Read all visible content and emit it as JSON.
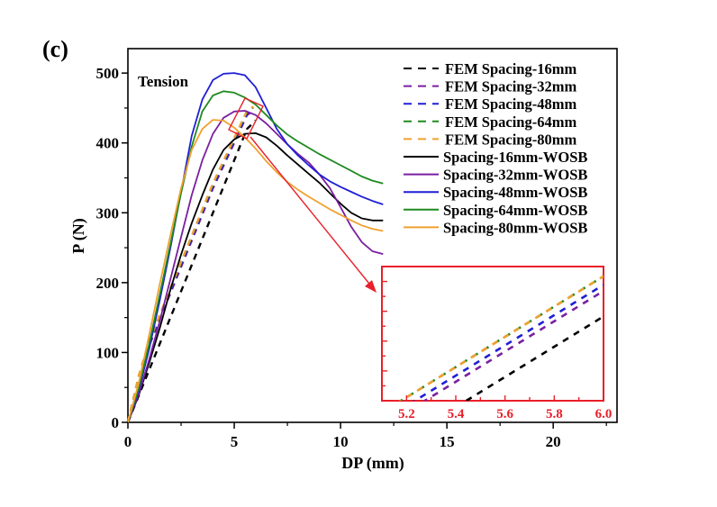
{
  "chart_data": {
    "type": "line",
    "panel_label": "(c)",
    "annotation": "Tension",
    "xlabel": "DP (mm)",
    "ylabel": "P (N)",
    "xlim": [
      0,
      23
    ],
    "ylim": [
      0,
      535
    ],
    "xticks": [
      0,
      5,
      10,
      15,
      20
    ],
    "yticks": [
      0,
      100,
      200,
      300,
      400,
      500
    ],
    "grid": false,
    "legend_position": "top-right",
    "series": [
      {
        "name": "FEM Spacing-16mm",
        "color": "#000000",
        "dash": true,
        "x": [
          0,
          1,
          2,
          3,
          4,
          5,
          5.6,
          6.0
        ],
        "y": [
          0,
          75,
          150,
          225,
          300,
          375,
          420,
          432
        ]
      },
      {
        "name": "FEM Spacing-32mm",
        "color": "#7a1fa0",
        "dash": true,
        "x": [
          0,
          0.5,
          1,
          2,
          3,
          4,
          5,
          5.6,
          5.9
        ],
        "y": [
          0,
          60,
          110,
          185,
          260,
          335,
          400,
          440,
          446
        ]
      },
      {
        "name": "FEM Spacing-48mm",
        "color": "#1f1fd6",
        "dash": true,
        "x": [
          0,
          0.5,
          1,
          2,
          3,
          4,
          5,
          5.6,
          5.9
        ],
        "y": [
          0,
          62,
          112,
          188,
          263,
          338,
          403,
          442,
          448
        ]
      },
      {
        "name": "FEM Spacing-64mm",
        "color": "#1f8a1f",
        "dash": true,
        "x": [
          0,
          0.5,
          1,
          2,
          3,
          4,
          5,
          5.6,
          5.9
        ],
        "y": [
          0,
          65,
          115,
          191,
          266,
          341,
          406,
          445,
          451
        ]
      },
      {
        "name": "FEM Spacing-80mm",
        "color": "#f0a030",
        "dash": true,
        "x": [
          0,
          0.5,
          1,
          2,
          3,
          4,
          5,
          5.6,
          5.9
        ],
        "y": [
          0,
          66,
          116,
          192,
          267,
          342,
          407,
          446,
          452
        ]
      },
      {
        "name": "Spacing-16mm-WOSB",
        "color": "#000000",
        "dash": false,
        "x": [
          0,
          0.5,
          1,
          1.5,
          2,
          2.5,
          3,
          3.5,
          4,
          4.5,
          5,
          5.5,
          6,
          6.5,
          7,
          7.5,
          8,
          8.5,
          9,
          9.5,
          10,
          10.5,
          11,
          11.5,
          12
        ],
        "y": [
          0,
          38,
          85,
          135,
          190,
          240,
          285,
          325,
          362,
          390,
          405,
          413,
          414,
          408,
          396,
          382,
          369,
          356,
          343,
          328,
          313,
          300,
          292,
          289,
          289
        ]
      },
      {
        "name": "Spacing-32mm-WOSB",
        "color": "#7a1fa0",
        "dash": false,
        "x": [
          0,
          0.5,
          1,
          1.5,
          2,
          2.5,
          3,
          3.5,
          4,
          4.5,
          5,
          5.5,
          6,
          6.5,
          7,
          7.5,
          8,
          8.5,
          9,
          9.5,
          10,
          10.5,
          11,
          11.5,
          12
        ],
        "y": [
          0,
          40,
          90,
          145,
          205,
          265,
          325,
          375,
          413,
          436,
          445,
          446,
          440,
          428,
          413,
          398,
          384,
          372,
          355,
          335,
          308,
          280,
          258,
          245,
          241
        ]
      },
      {
        "name": "Spacing-48mm-WOSB",
        "color": "#1f1fd6",
        "dash": false,
        "x": [
          0,
          0.5,
          1,
          1.5,
          2,
          2.5,
          3,
          3.5,
          4,
          4.5,
          5,
          5.5,
          6,
          6.5,
          7,
          7.5,
          8,
          8.5,
          9,
          9.5,
          10,
          10.5,
          11,
          11.5,
          12
        ],
        "y": [
          0,
          45,
          105,
          175,
          250,
          330,
          410,
          462,
          490,
          499,
          500,
          497,
          480,
          450,
          420,
          398,
          382,
          368,
          355,
          345,
          337,
          330,
          323,
          317,
          312
        ]
      },
      {
        "name": "Spacing-64mm-WOSB",
        "color": "#1f8a1f",
        "dash": false,
        "x": [
          0,
          0.5,
          1,
          1.5,
          2,
          2.5,
          3,
          3.5,
          4,
          4.5,
          5,
          5.5,
          6,
          6.5,
          7,
          7.5,
          8,
          8.5,
          9,
          9.5,
          10,
          10.5,
          11,
          11.5,
          12
        ],
        "y": [
          0,
          48,
          112,
          183,
          255,
          328,
          395,
          445,
          468,
          474,
          472,
          465,
          455,
          440,
          425,
          412,
          402,
          393,
          384,
          376,
          368,
          360,
          352,
          346,
          342
        ]
      },
      {
        "name": "Spacing-80mm-WOSB",
        "color": "#f0a030",
        "dash": false,
        "x": [
          0,
          0.5,
          1,
          1.5,
          2,
          2.5,
          3,
          3.5,
          4,
          4.5,
          5,
          5.5,
          6,
          6.5,
          7,
          7.5,
          8,
          8.5,
          9,
          9.5,
          10,
          10.5,
          11,
          11.5,
          12
        ],
        "y": [
          0,
          55,
          125,
          198,
          268,
          335,
          390,
          420,
          433,
          432,
          422,
          408,
          392,
          374,
          358,
          344,
          333,
          323,
          314,
          305,
          297,
          289,
          282,
          277,
          274
        ]
      }
    ],
    "inset": {
      "xlim": [
        5.1,
        6.0
      ],
      "xticks": [
        "5.2",
        "5.4",
        "5.6",
        "5.8",
        "6.0"
      ],
      "ylim": [
        400,
        455
      ],
      "zoom_region": {
        "x": [
          5.0,
          6.2
        ],
        "y": [
          395,
          460
        ]
      }
    }
  }
}
